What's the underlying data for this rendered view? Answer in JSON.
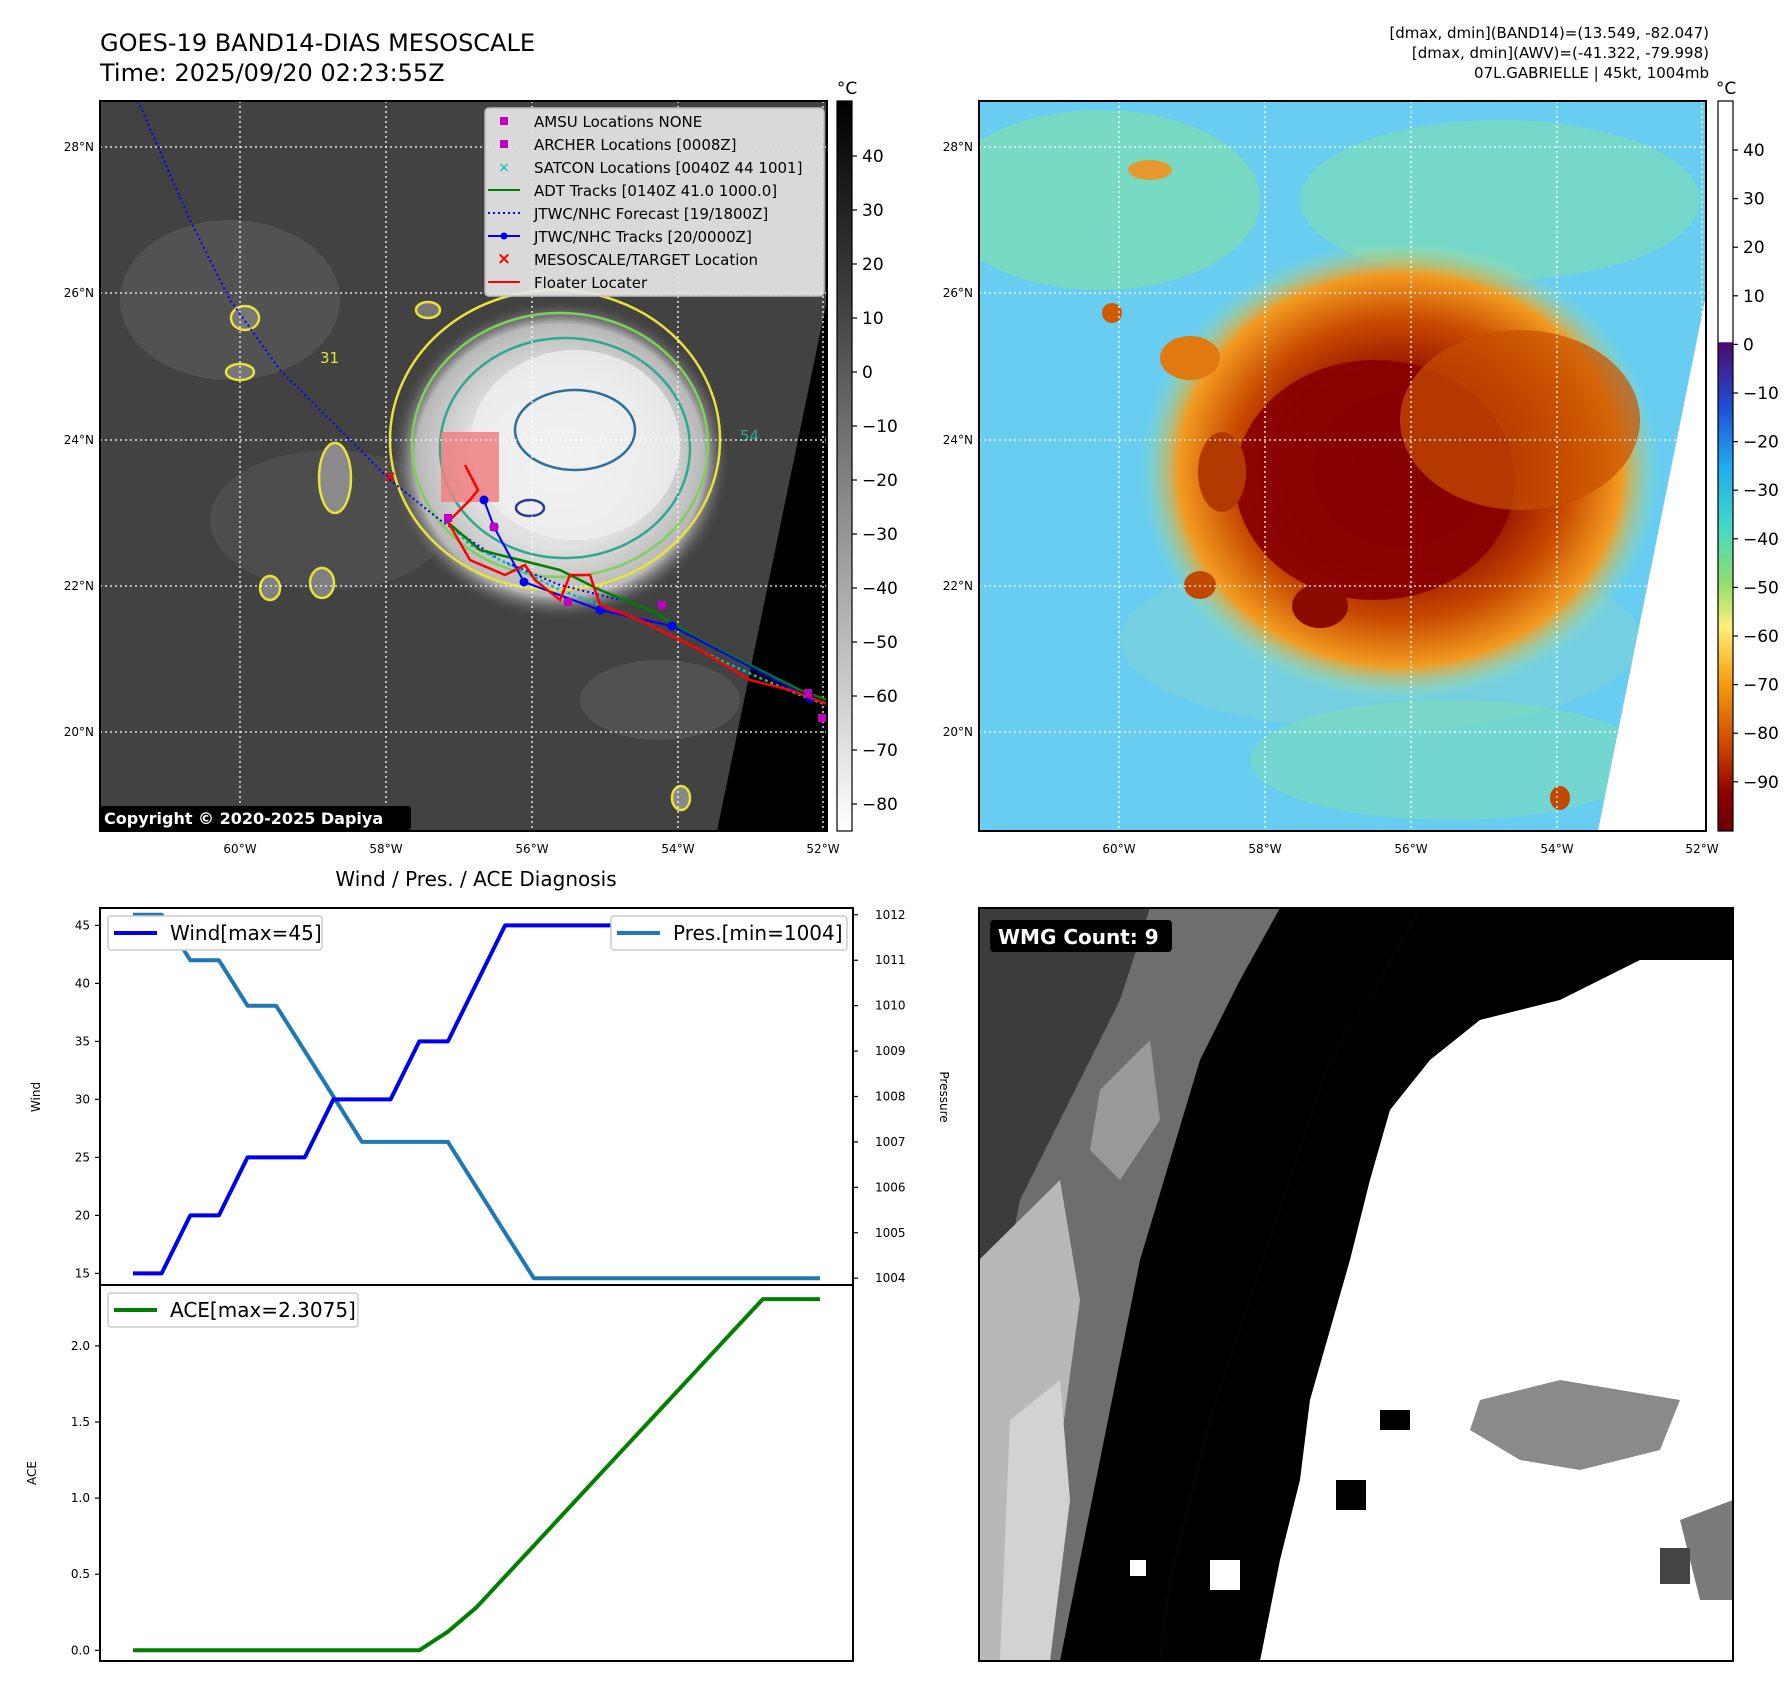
{
  "header": {
    "title": "GOES-19 BAND14-DIAS MESOSCALE",
    "time": "Time: 2025/09/20 02:23:55Z",
    "info_line1": "[dmax, dmin](BAND14)=(13.549, -82.047)",
    "info_line2": "[dmax, dmin](AWV)=(-41.322, -79.998)",
    "info_line3": "07L.GABRIELLE | 45kt, 1004mb"
  },
  "map_axes": {
    "lat_ticks": [
      "28°N",
      "26°N",
      "24°N",
      "22°N",
      "20°N"
    ],
    "lon_ticks": [
      "60°W",
      "58°W",
      "56°W",
      "54°W",
      "52°W"
    ]
  },
  "ir_colorbar": {
    "unit": "°C",
    "ticks": [
      "40",
      "30",
      "20",
      "10",
      "0",
      "−10",
      "−20",
      "−30",
      "−40",
      "−50",
      "−60",
      "−70",
      "−80"
    ]
  },
  "awv_colorbar": {
    "unit": "°C",
    "ticks": [
      "40",
      "30",
      "20",
      "10",
      "0",
      "−10",
      "−20",
      "−30",
      "−40",
      "−50",
      "−60",
      "−70",
      "−80",
      "−90"
    ]
  },
  "legend": {
    "items": [
      "AMSU Locations NONE",
      "ARCHER Locations [0008Z]",
      "SATCON Locations [0040Z 44 1001]",
      "ADT Tracks [0140Z 41.0 1000.0]",
      "JTWC/NHC Forecast [19/1800Z]",
      "JTWC/NHC Tracks [20/0000Z]",
      "MESOSCALE/TARGET Location",
      "Floater Locater"
    ]
  },
  "copyright": "Copyright © 2020-2025 Dapiya",
  "contour_labels": [
    "31",
    "54"
  ],
  "wmg": {
    "label": "WMG Count: 9"
  },
  "colors": {
    "wind": "#0000ee",
    "pressure": "#1f77b4",
    "ace": "#008000",
    "archer": "#bf00bf",
    "satcon": "#00bfbf",
    "adt": "#008000",
    "forecast": "#0000ff",
    "track": "#0000ff",
    "target": "#ff0000",
    "floater": "#ff0000"
  },
  "chart_data": [
    {
      "type": "line",
      "title": "Wind / Pres. / ACE Diagnosis",
      "ylabel": "Wind",
      "y2label": "Pressure",
      "ylim": [
        14.0,
        46.5
      ],
      "y2lim": [
        1003.85,
        1012.15
      ],
      "yticks": [
        "45",
        "40",
        "35",
        "30",
        "25",
        "20",
        "15"
      ],
      "y2ticks": [
        "1012",
        "1011",
        "1010",
        "1009",
        "1008",
        "1007",
        "1006",
        "1005",
        "1004"
      ],
      "x": [
        0,
        1,
        2,
        3,
        4,
        5,
        6,
        7,
        8,
        9,
        10,
        11,
        12,
        13,
        14,
        15,
        16,
        17,
        18,
        19,
        20,
        21,
        22,
        23,
        24
      ],
      "series": [
        {
          "name": "Wind[max=45]",
          "axis": "left",
          "values": [
            15,
            15,
            20,
            20,
            25,
            25,
            25,
            30,
            30,
            30,
            35,
            35,
            40,
            45,
            45,
            45,
            45,
            45,
            45,
            45,
            45,
            45,
            45,
            45,
            45
          ]
        },
        {
          "name": "Pres.[min=1004]",
          "axis": "right",
          "values": [
            1012,
            1012,
            1011,
            1011,
            1010,
            1010,
            1009,
            1008,
            1007,
            1007,
            1007,
            1007,
            1006,
            1005,
            1004,
            1004,
            1004,
            1004,
            1004,
            1004,
            1004,
            1004,
            1004,
            1004,
            1004
          ]
        }
      ]
    },
    {
      "type": "line",
      "ylabel": "ACE",
      "ylim": [
        -0.07,
        2.4
      ],
      "yticks": [
        "2.0",
        "1.5",
        "1.0",
        "0.5",
        "0.0"
      ],
      "x": [
        0,
        1,
        2,
        3,
        4,
        5,
        6,
        7,
        8,
        9,
        10,
        11,
        12,
        13,
        14,
        15,
        16,
        17,
        18,
        19,
        20,
        21,
        22,
        23,
        24
      ],
      "series": [
        {
          "name": "ACE[max=2.3075]",
          "values": [
            0,
            0,
            0,
            0,
            0,
            0,
            0,
            0,
            0,
            0,
            0,
            0.1225,
            0.2825,
            0.485,
            0.6875,
            0.89,
            1.0925,
            1.295,
            1.4975,
            1.7,
            1.9025,
            2.105,
            2.3075,
            2.3075,
            2.3075
          ]
        }
      ]
    }
  ]
}
